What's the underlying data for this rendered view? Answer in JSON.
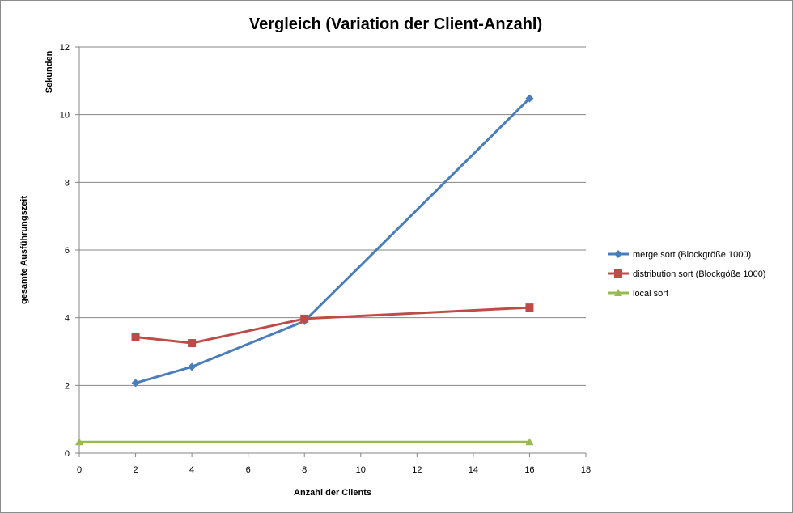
{
  "chart_data": {
    "type": "scatter",
    "title": "Vergleich (Variation der Client-Anzahl)",
    "xlabel": "Anzahl der Clients",
    "ylabel_top": "Sekunden",
    "ylabel": "gesamte Ausführungszeit",
    "xlim": [
      0,
      18
    ],
    "ylim": [
      0,
      12
    ],
    "xticks": [
      0,
      2,
      4,
      6,
      8,
      10,
      12,
      14,
      16,
      18
    ],
    "yticks": [
      0,
      2,
      4,
      6,
      8,
      10,
      12
    ],
    "grid": "horizontal",
    "legend": "right",
    "series": [
      {
        "name": "merge sort (Blockgröße 1000)",
        "color": "#4a7ebb",
        "marker": "diamond",
        "x": [
          2,
          4,
          8,
          16
        ],
        "y": [
          2.07,
          2.55,
          3.9,
          10.48
        ]
      },
      {
        "name": "distribution sort (Blockgöße 1000)",
        "color": "#be4b48",
        "marker": "square",
        "x": [
          2,
          4,
          8,
          16
        ],
        "y": [
          3.43,
          3.25,
          3.97,
          4.3
        ]
      },
      {
        "name": "local sort",
        "color": "#98b954",
        "marker": "triangle",
        "x": [
          0,
          16
        ],
        "y": [
          0.33,
          0.33
        ]
      }
    ]
  }
}
